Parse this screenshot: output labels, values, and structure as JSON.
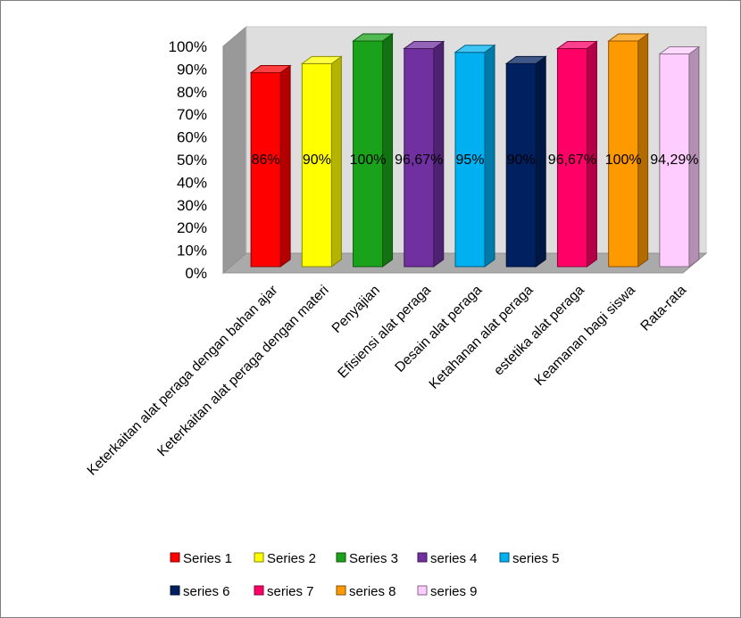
{
  "chart_data": {
    "type": "bar",
    "title": "",
    "xlabel": "",
    "ylabel": "",
    "ylim": [
      0,
      100
    ],
    "y_ticks": [
      "0%",
      "10%",
      "20%",
      "30%",
      "40%",
      "50%",
      "60%",
      "70%",
      "80%",
      "90%",
      "100%"
    ],
    "categories": [
      "Keterkaitan alat peraga dengan bahan ajar",
      "Keterkaitan alat peraga dengan materi",
      "Penyajian",
      "Efisiensi alat peraga",
      "Desain alat peraga",
      "Ketahanan alat peraga",
      "estetika alat peraga",
      "Keamanan bagi siswa",
      "Rata-rata"
    ],
    "values": [
      86,
      90,
      100,
      96.67,
      95,
      90,
      96.67,
      100,
      94.29
    ],
    "data_labels": [
      "86%",
      "90%",
      "100%",
      "96,67%",
      "95%",
      "90%",
      "96,67%",
      "100%",
      "94,29%"
    ],
    "series": [
      {
        "name": "Series 1",
        "color": "#ff0000"
      },
      {
        "name": "Series 2",
        "color": "#ffff00"
      },
      {
        "name": "Series 3",
        "color": "#1aa31a"
      },
      {
        "name": "series 4",
        "color": "#7030a0"
      },
      {
        "name": "series  5",
        "color": "#00b0f0"
      },
      {
        "name": "series 6",
        "color": "#002060"
      },
      {
        "name": "series 7",
        "color": "#ff0066"
      },
      {
        "name": "series 8",
        "color": "#ff9900"
      },
      {
        "name": "series 9",
        "color": "#ffccff"
      }
    ],
    "legend": "bottom",
    "grid": false,
    "style": "3d-column"
  }
}
